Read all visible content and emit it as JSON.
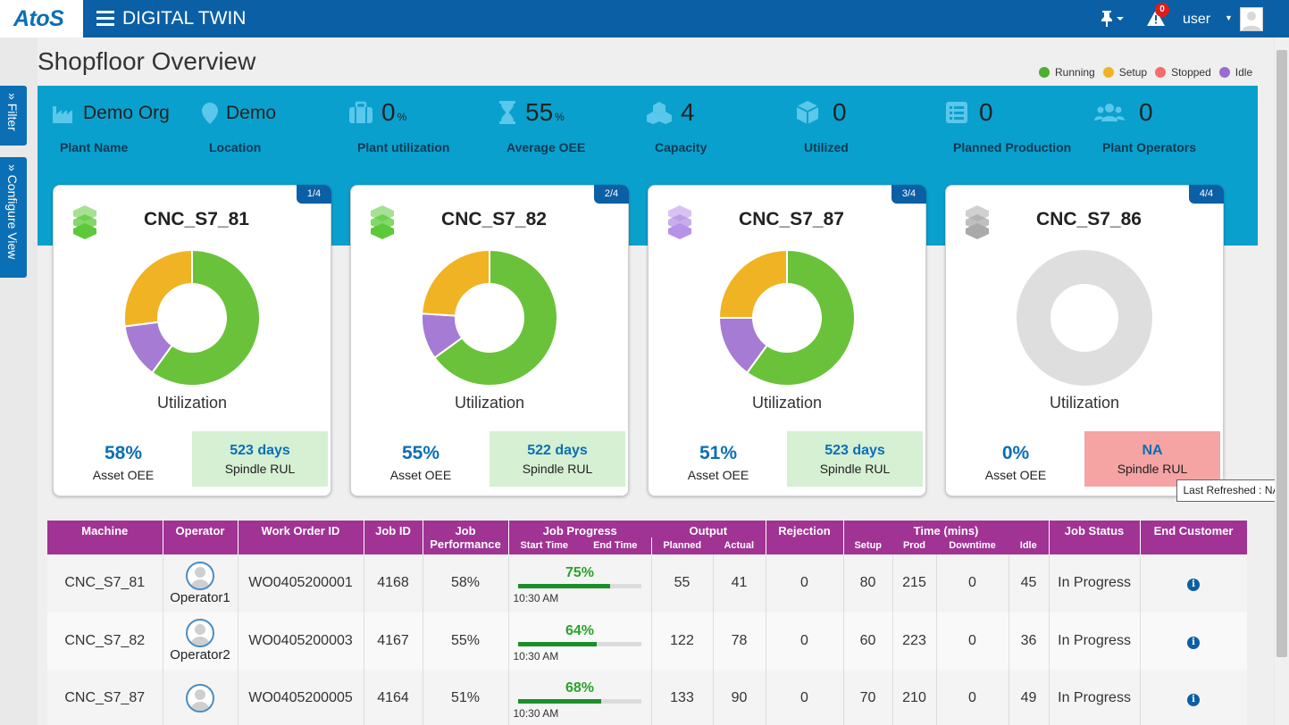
{
  "header": {
    "logo": "AtoS",
    "app_title": "DIGITAL TWIN",
    "notification_count": "0",
    "user": "user"
  },
  "page": {
    "title": "Shopfloor Overview",
    "legend": [
      {
        "label": "Running",
        "color": "#4caf30"
      },
      {
        "label": "Setup",
        "color": "#f0b323"
      },
      {
        "label": "Stopped",
        "color": "#f76c6c"
      },
      {
        "label": "Idle",
        "color": "#9b6cd0"
      }
    ]
  },
  "side_tabs": {
    "filter": "Filter",
    "configure": "Configure View"
  },
  "kpis": {
    "plant_name": {
      "value": "Demo Org",
      "label": "Plant Name"
    },
    "location": {
      "value": "Demo",
      "label": "Location"
    },
    "plant_utilization": {
      "value": "0",
      "unit": "%",
      "label": "Plant utilization"
    },
    "average_oee": {
      "value": "55",
      "unit": "%",
      "label": "Average OEE"
    },
    "capacity": {
      "value": "4",
      "label": "Capacity"
    },
    "utilized": {
      "value": "0",
      "label": "Utilized"
    },
    "planned_production": {
      "value": "0",
      "label": "Planned Production"
    },
    "plant_operators": {
      "value": "0",
      "label": "Plant Operators"
    }
  },
  "cards": [
    {
      "badge": "1/4",
      "name": "CNC_S7_81",
      "icon_color": "#5cc93a",
      "util_label": "Utilization",
      "oee": "58%",
      "oee_label": "Asset OEE",
      "rul": "523 days",
      "rul_label": "Spindle RUL",
      "donut": [
        {
          "status": "Running",
          "value": 0.6,
          "color": "#6ac23a"
        },
        {
          "status": "Idle",
          "value": 0.13,
          "color": "#a67bd4"
        },
        {
          "status": "Setup",
          "value": 0.27,
          "color": "#f0b323"
        }
      ]
    },
    {
      "badge": "2/4",
      "name": "CNC_S7_82",
      "icon_color": "#5cc93a",
      "util_label": "Utilization",
      "oee": "55%",
      "oee_label": "Asset OEE",
      "rul": "522 days",
      "rul_label": "Spindle RUL",
      "donut": [
        {
          "status": "Running",
          "value": 0.65,
          "color": "#6ac23a"
        },
        {
          "status": "Idle",
          "value": 0.11,
          "color": "#a67bd4"
        },
        {
          "status": "Setup",
          "value": 0.24,
          "color": "#f0b323"
        }
      ]
    },
    {
      "badge": "3/4",
      "name": "CNC_S7_87",
      "icon_color": "#b792e6",
      "util_label": "Utilization",
      "oee": "51%",
      "oee_label": "Asset OEE",
      "rul": "523 days",
      "rul_label": "Spindle RUL",
      "donut": [
        {
          "status": "Running",
          "value": 0.6,
          "color": "#6ac23a"
        },
        {
          "status": "Idle",
          "value": 0.15,
          "color": "#a67bd4"
        },
        {
          "status": "Setup",
          "value": 0.25,
          "color": "#f0b323"
        }
      ]
    },
    {
      "badge": "4/4",
      "name": "CNC_S7_86",
      "icon_color": "#a9a9a9",
      "util_label": "Utilization",
      "oee": "0%",
      "oee_label": "Asset OEE",
      "rul": "NA",
      "rul_label": "Spindle RUL",
      "donut": [
        {
          "status": "None",
          "value": 1.0,
          "color": "#dedede"
        }
      ]
    }
  ],
  "tooltip": "Last Refreshed : NA",
  "table": {
    "headers": {
      "machine": "Machine",
      "operator": "Operator",
      "work_order": "Work Order ID",
      "job_id": "Job ID",
      "job_performance": "Job Performance",
      "job_progress": "Job Progress",
      "start_time": "Start Time",
      "end_time": "End Time",
      "output": "Output",
      "planned": "Planned",
      "actual": "Actual",
      "rejection": "Rejection",
      "time": "Time (mins)",
      "setup": "Setup",
      "prod": "Prod",
      "downtime": "Downtime",
      "idle": "Idle",
      "job_status": "Job Status",
      "end_customer": "End Customer"
    },
    "rows": [
      {
        "machine": "CNC_S7_81",
        "operator": "Operator1",
        "work_order": "WO0405200001",
        "job_id": "4168",
        "performance": "58%",
        "progress": "75%",
        "progress_value": 0.75,
        "start": "10:30 AM",
        "planned": "55",
        "actual": "41",
        "rejection": "0",
        "setup": "80",
        "prod": "215",
        "downtime": "0",
        "idle": "45",
        "status": "In Progress"
      },
      {
        "machine": "CNC_S7_82",
        "operator": "Operator2",
        "work_order": "WO0405200003",
        "job_id": "4167",
        "performance": "55%",
        "progress": "64%",
        "progress_value": 0.64,
        "start": "10:30 AM",
        "planned": "122",
        "actual": "78",
        "rejection": "0",
        "setup": "60",
        "prod": "223",
        "downtime": "0",
        "idle": "36",
        "status": "In Progress"
      },
      {
        "machine": "CNC_S7_87",
        "operator": "",
        "work_order": "WO0405200005",
        "job_id": "4164",
        "performance": "51%",
        "progress": "68%",
        "progress_value": 0.68,
        "start": "10:30 AM",
        "planned": "133",
        "actual": "90",
        "rejection": "0",
        "setup": "70",
        "prod": "210",
        "downtime": "0",
        "idle": "49",
        "status": "In Progress"
      }
    ]
  }
}
